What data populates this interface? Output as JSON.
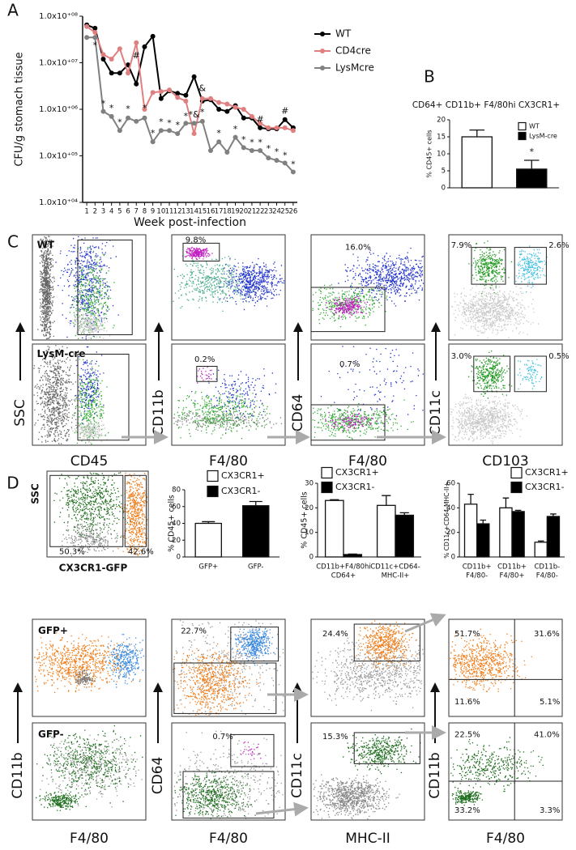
{
  "panel_labels": [
    "A",
    "B",
    "C",
    "D"
  ],
  "chart_data": [
    {
      "type": "line",
      "y_label": "CFU/g stomach tissue",
      "x_label": "Week post-infection",
      "log_y": true,
      "x": [
        1,
        2,
        3,
        4,
        5,
        6,
        7,
        8,
        9,
        10,
        11,
        12,
        13,
        14,
        15,
        16,
        17,
        18,
        19,
        20,
        21,
        22,
        23,
        24,
        25,
        26
      ],
      "xlim": [
        0.5,
        26.5
      ],
      "xticks": [
        1,
        2,
        3,
        4,
        5,
        6,
        7,
        8,
        9,
        10,
        11,
        12,
        13,
        14,
        15,
        16,
        17,
        18,
        19,
        20,
        21,
        22,
        23,
        24,
        25,
        26
      ],
      "ylim": [
        10000,
        100000000
      ],
      "yticks": [
        {
          "value": 10000,
          "label": "1.0x10⁺⁰⁴"
        },
        {
          "value": 100000,
          "label": "1.0x10⁺⁰⁵"
        },
        {
          "value": 1000000,
          "label": "1.0x10⁺⁰⁶"
        },
        {
          "value": 10000000,
          "label": "1.0x10⁺⁰⁷"
        },
        {
          "value": 100000000,
          "label": "1.0x10⁺⁰⁸"
        }
      ],
      "legend_position": "outside right",
      "series": [
        {
          "name": "WT",
          "color": "#000000",
          "values": [
            65000000,
            55000000,
            12000000,
            6000000,
            6000000,
            9000000,
            3500000,
            22000000,
            37000000,
            1700000,
            2500000,
            2200000,
            2000000,
            5000000,
            1500000,
            1600000,
            1000000,
            900000,
            1200000,
            650000,
            650000,
            400000,
            380000,
            380000,
            600000,
            400000
          ]
        },
        {
          "name": "CD4cre",
          "color": "#e07f7f",
          "values": [
            60000000,
            45000000,
            15000000,
            12000000,
            20000000,
            6000000,
            27000000,
            1000000,
            2300000,
            2400000,
            2600000,
            1800000,
            1500000,
            300000,
            1700000,
            1700000,
            1400000,
            1300000,
            1100000,
            1000000,
            700000,
            500000,
            400000,
            400000,
            400000,
            350000
          ]
        },
        {
          "name": "LysMcre",
          "color": "#808080",
          "values": [
            35000000,
            35000000,
            900000,
            700000,
            350000,
            650000,
            550000,
            650000,
            200000,
            350000,
            350000,
            300000,
            500000,
            500000,
            550000,
            130000,
            200000,
            120000,
            250000,
            150000,
            130000,
            130000,
            90000,
            80000,
            70000,
            45000
          ]
        }
      ],
      "annotations": [
        {
          "text": "*",
          "x": 2,
          "y": 23000000
        },
        {
          "text": "*",
          "x": 3,
          "y": 1300000
        },
        {
          "text": "*",
          "x": 4,
          "y": 1050000
        },
        {
          "text": "*",
          "x": 5,
          "y": 520000
        },
        {
          "text": "*",
          "x": 6,
          "y": 1000000
        },
        {
          "text": "#",
          "x": 7,
          "y": 14000000
        },
        {
          "text": "*",
          "x": 8,
          "y": 1050000
        },
        {
          "text": "*",
          "x": 9,
          "y": 300000
        },
        {
          "text": "*",
          "x": 10,
          "y": 530000
        },
        {
          "text": "*",
          "x": 11,
          "y": 500000
        },
        {
          "text": "*",
          "x": 12,
          "y": 450000
        },
        {
          "text": "*",
          "x": 13,
          "y": 700000
        },
        {
          "text": "*&",
          "x": 14,
          "y": 750000
        },
        {
          "text": "&",
          "x": 15,
          "y": 2800000
        },
        {
          "text": "*",
          "x": 15,
          "y": 850000
        },
        {
          "text": "*",
          "x": 17,
          "y": 300000
        },
        {
          "text": "*",
          "x": 19,
          "y": 370000
        },
        {
          "text": "*",
          "x": 20,
          "y": 220000
        },
        {
          "text": "*",
          "x": 21,
          "y": 190000
        },
        {
          "text": "*",
          "x": 22,
          "y": 190000
        },
        {
          "text": "#",
          "x": 22,
          "y": 600000
        },
        {
          "text": "*",
          "x": 23,
          "y": 140000
        },
        {
          "text": "*",
          "x": 24,
          "y": 120000
        },
        {
          "text": "*",
          "x": 25,
          "y": 100000
        },
        {
          "text": "#",
          "x": 25,
          "y": 900000
        },
        {
          "text": "*",
          "x": 26,
          "y": 65000
        }
      ]
    },
    {
      "type": "bar",
      "title": "CD64+ CD11b+ F4/80hi CX3CR1+",
      "y_label": "% CD45+ cells",
      "grouped": false,
      "categories": [
        null,
        null
      ],
      "ylim": [
        0,
        20
      ],
      "yticks": [
        0,
        5,
        10,
        15,
        20
      ],
      "legend_position": "upper right",
      "series": [
        {
          "name": "WT",
          "color": "#ffffff",
          "values": [
            15,
            null
          ],
          "errors": [
            2,
            null
          ]
        },
        {
          "name": "LysM-cre",
          "color": "#000000",
          "values": [
            null,
            5.5
          ],
          "errors": [
            null,
            2.6
          ]
        }
      ],
      "annotations": [
        {
          "text": "*",
          "x": 1,
          "y": 10.5
        }
      ]
    },
    {
      "type": "bar",
      "y_label": "% CD45+ cells",
      "grouped": false,
      "categories": [
        [
          "GFP+"
        ],
        [
          "GFP-"
        ]
      ],
      "ylim": [
        0,
        80
      ],
      "yticks": [
        0,
        20,
        40,
        60,
        80
      ],
      "legend_position": "upper left",
      "series": [
        {
          "name": "CX3CR1+",
          "color": "#ffffff",
          "values": [
            40,
            null
          ],
          "errors": [
            2,
            null
          ]
        },
        {
          "name": "CX3CR1-",
          "color": "#000000",
          "values": [
            null,
            61
          ],
          "errors": [
            null,
            5
          ]
        }
      ]
    },
    {
      "type": "bar",
      "y_label": "% CD45+ cells",
      "grouped": true,
      "categories": [
        [
          "CD11b+F4/80hi",
          "CD64+"
        ],
        [
          "CD11c+CD64-",
          "MHC-II+"
        ]
      ],
      "ylim": [
        0,
        30
      ],
      "yticks": [
        0,
        10,
        20,
        30
      ],
      "legend_position": "upper left",
      "series": [
        {
          "name": "CX3CR1+",
          "color": "#ffffff",
          "values": [
            23,
            21
          ],
          "errors": [
            0.3,
            4
          ]
        },
        {
          "name": "CX3CR1-",
          "color": "#000000",
          "values": [
            1,
            17
          ],
          "errors": [
            0.2,
            1
          ]
        }
      ]
    },
    {
      "type": "bar",
      "y_label": "% CD11c+CD64-MHC-II+",
      "grouped": true,
      "categories": [
        [
          "CD11b+",
          "F4/80-"
        ],
        [
          "CD11b+",
          "F4/80+"
        ],
        [
          "CD11b-",
          "F4/80-"
        ]
      ],
      "ylim": [
        0,
        60
      ],
      "yticks": [
        0,
        20,
        40,
        60
      ],
      "legend_position": "upper right",
      "series": [
        {
          "name": "CX3CR1+",
          "color": "#ffffff",
          "values": [
            43,
            40,
            12
          ],
          "errors": [
            8,
            8,
            1
          ]
        },
        {
          "name": "CX3CR1-",
          "color": "#000000",
          "values": [
            27,
            37,
            33
          ],
          "errors": [
            3,
            1,
            2
          ]
        }
      ]
    }
  ],
  "flow": {
    "C": {
      "plots": [
        {
          "labels": [
            "WT"
          ]
        },
        {
          "labels": [
            "9.8%"
          ]
        },
        {
          "labels": [
            "16.0%"
          ]
        },
        {
          "labels": [
            "7.9%",
            "2.6%"
          ]
        },
        {
          "labels": [
            "LysM-cre"
          ]
        },
        {
          "labels": [
            "0.2%"
          ]
        },
        {
          "labels": [
            "0.7%"
          ]
        },
        {
          "labels": [
            "3.0%",
            "0.5%"
          ]
        }
      ],
      "y_labels": [
        "SSC",
        "CD11b",
        "CD64",
        "CD11c"
      ],
      "x_labels": [
        "CD45",
        "F4/80",
        "F4/80",
        "CD103"
      ]
    },
    "D": {
      "gfp_plot": {
        "y_label": "SSC",
        "x_label": "CX3CR1-GFP",
        "labels": [
          "50.3%",
          "42.6%"
        ]
      },
      "plots": [
        {
          "labels": [
            "GFP+"
          ]
        },
        {
          "labels": [
            "22.7%"
          ]
        },
        {
          "labels": [
            "24.4%"
          ]
        },
        {
          "labels": [
            "51.7%",
            "31.6%",
            "11.6%",
            "5.1%"
          ]
        },
        {
          "labels": [
            "GFP-"
          ]
        },
        {
          "labels": [
            "0.7%"
          ]
        },
        {
          "labels": [
            "15.3%"
          ]
        },
        {
          "labels": [
            "22.5%",
            "41.0%",
            "33.2%",
            "3.3%"
          ]
        }
      ],
      "y_labels": [
        "CD11b",
        "CD64",
        "CD11c",
        "CD11b"
      ],
      "x_labels": [
        "F4/80",
        "F4/80",
        "MHC-II",
        "F4/80"
      ]
    }
  }
}
